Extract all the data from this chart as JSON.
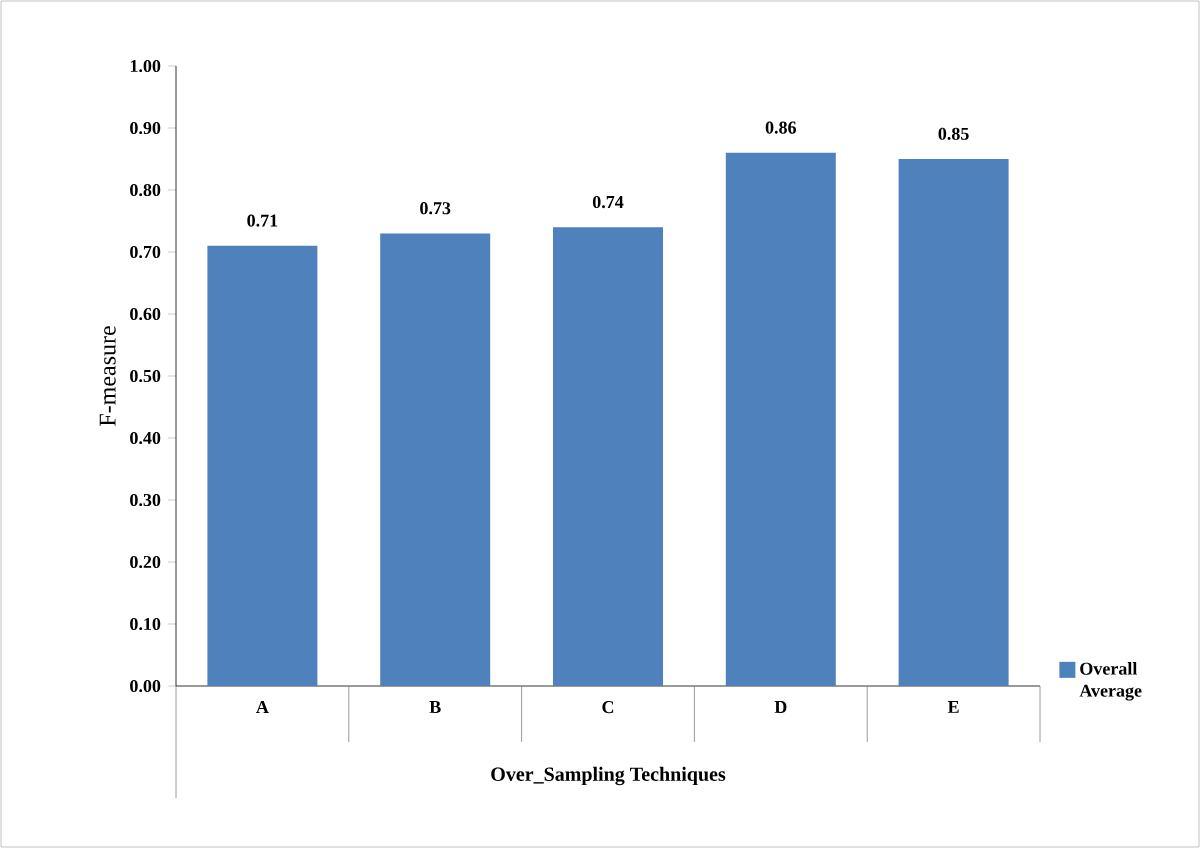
{
  "chart_data": {
    "type": "bar",
    "xlabel": "Over_Sampling Techniques",
    "ylabel": "F-measure",
    "categories": [
      "A",
      "B",
      "C",
      "D",
      "E"
    ],
    "series": [
      {
        "name": "Overall Average",
        "color": "#4f81bd",
        "values": [
          0.71,
          0.73,
          0.74,
          0.86,
          0.85
        ]
      }
    ],
    "ylim": [
      0,
      1
    ],
    "yticks": [
      {
        "value": 0,
        "label": "0.00"
      },
      {
        "value": 0.1,
        "label": "0.10"
      },
      {
        "value": 0.2,
        "label": "0.20"
      },
      {
        "value": 0.3,
        "label": "0.30"
      },
      {
        "value": 0.4,
        "label": "0.40"
      },
      {
        "value": 0.5,
        "label": "0.50"
      },
      {
        "value": 0.6,
        "label": "0.60"
      },
      {
        "value": 0.7,
        "label": "0.70"
      },
      {
        "value": 0.8,
        "label": "0.80"
      },
      {
        "value": 0.9,
        "label": "0.90"
      },
      {
        "value": 1,
        "label": "1.00"
      }
    ],
    "data_labels": true,
    "legend": "right",
    "grid": false
  }
}
